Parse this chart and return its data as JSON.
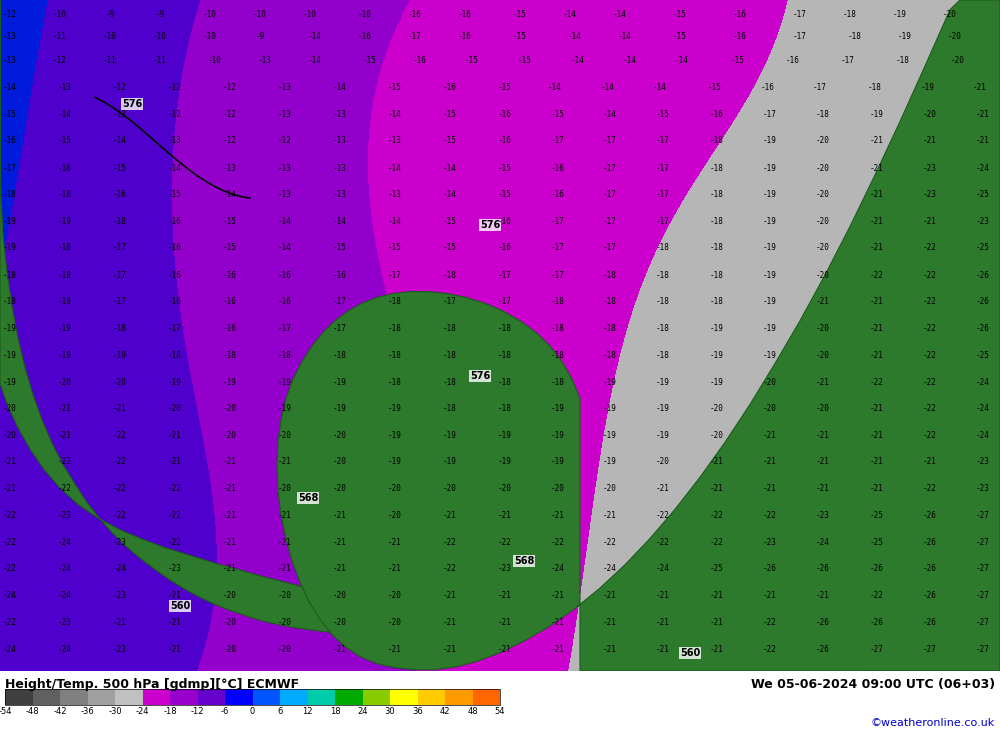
{
  "title_left": "Height/Temp. 500 hPa [gdmp][°C] ECMWF",
  "title_right": "We 05-06-2024 09:00 UTC (06+03)",
  "credit": "©weatheronline.co.uk",
  "colorbar_values": [
    -54,
    -48,
    -42,
    -36,
    -30,
    -24,
    -18,
    -12,
    -6,
    0,
    6,
    12,
    18,
    24,
    30,
    36,
    42,
    48,
    54
  ],
  "colorbar_colors": [
    "#404040",
    "#606060",
    "#808080",
    "#a0a0a0",
    "#c0c0c0",
    "#cc00cc",
    "#9900cc",
    "#6600cc",
    "#0000cc",
    "#0066ff",
    "#00ccff",
    "#00cc66",
    "#00cc00",
    "#66cc00",
    "#ffff00",
    "#ffcc00",
    "#ff9900",
    "#ff6600",
    "#cc3300",
    "#990000"
  ],
  "background_color": "#ffffff",
  "map_bg_color": "#7ec8e8",
  "land_green_color": "#2d7a2d",
  "contour_color": "#000000",
  "isohypse_color": "#000000",
  "temp_contour_color": "#cc0000",
  "fig_width": 10.0,
  "fig_height": 7.33,
  "bottom_bar_height": 0.06
}
